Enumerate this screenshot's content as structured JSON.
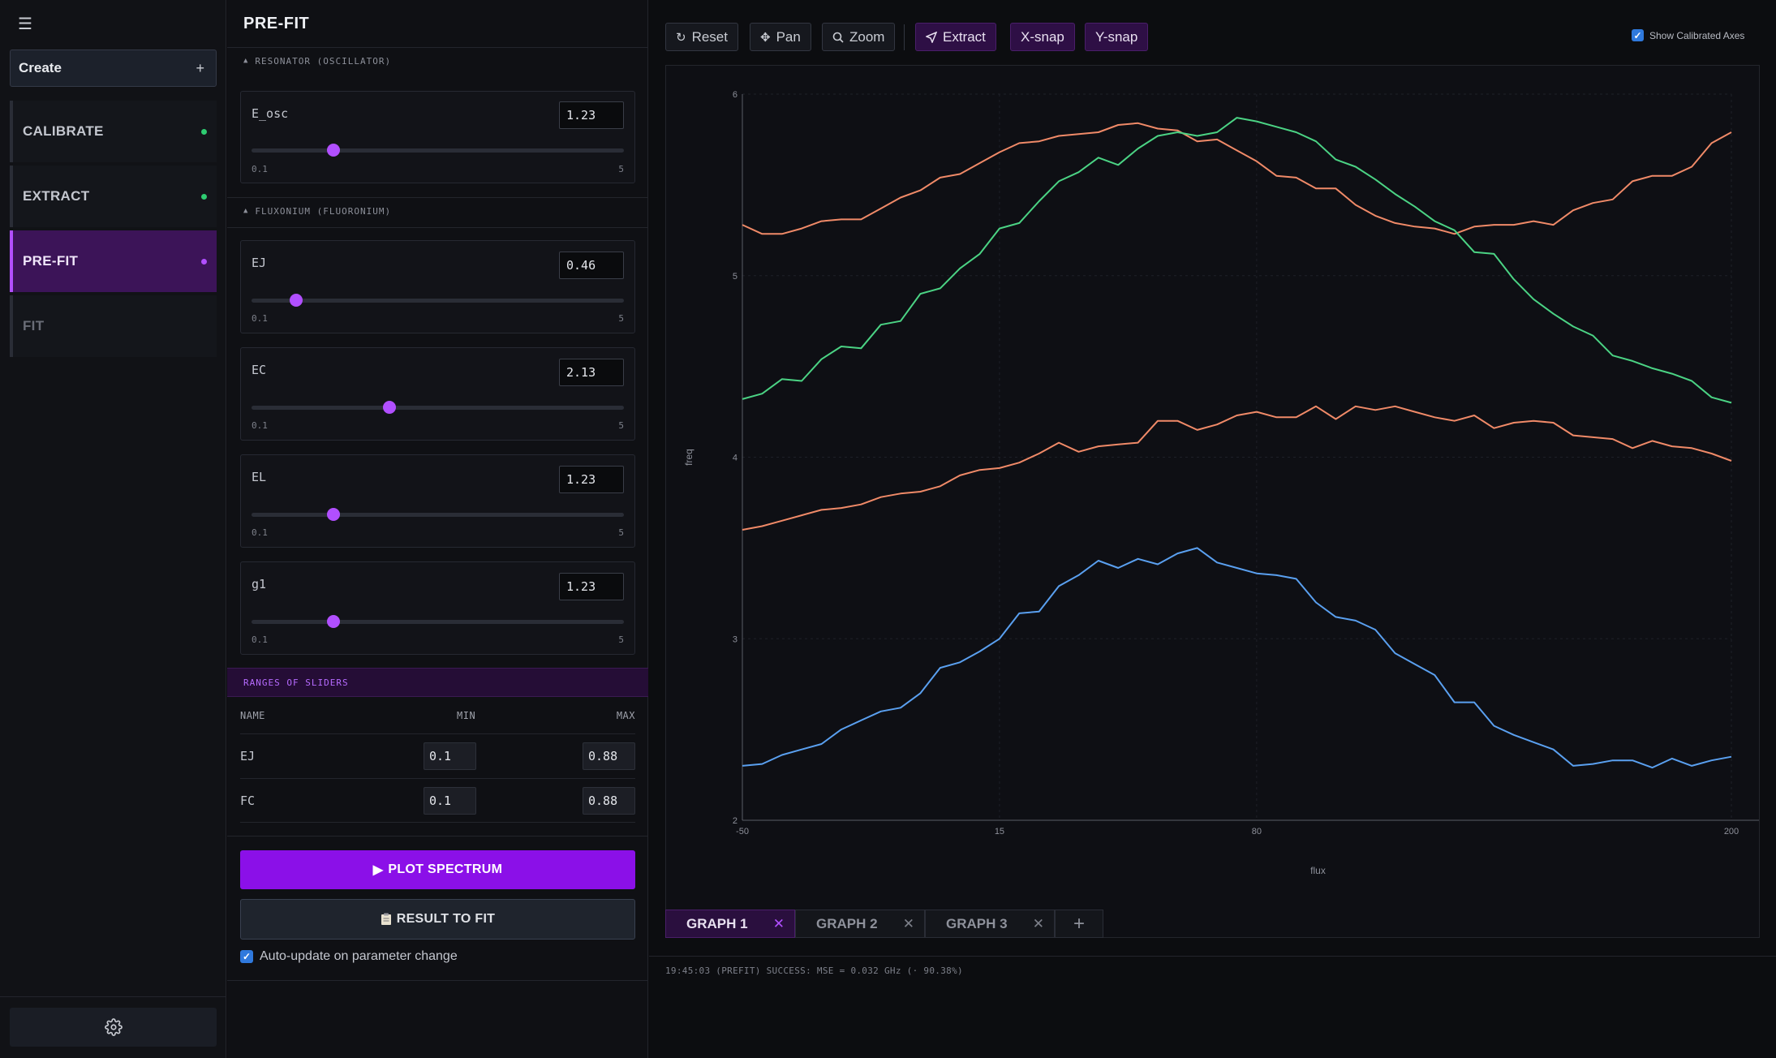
{
  "sidebar": {
    "create_label": "Create",
    "steps": [
      {
        "label": "CALIBRATE",
        "status_color": "#2ecc71"
      },
      {
        "label": "EXTRACT",
        "status_color": "#2ecc71"
      },
      {
        "label": "PRE-FIT",
        "status_color": "#b14fff"
      },
      {
        "label": "FIT",
        "status_color": ""
      }
    ]
  },
  "panel": {
    "title": "PRE-FIT",
    "resonator_section": "RESONATOR (OSCILLATOR)",
    "fluxonium_section": "FLUXONIUM (FLUORONIUM)",
    "params": [
      {
        "name": "E_osc",
        "value": "1.23",
        "min": "0.1",
        "max": "5",
        "slider_fraction": 0.22
      },
      {
        "name": "EJ",
        "value": "0.46",
        "min": "0.1",
        "max": "5",
        "slider_fraction": 0.12
      },
      {
        "name": "EC",
        "value": "2.13",
        "min": "0.1",
        "max": "5",
        "slider_fraction": 0.37
      },
      {
        "name": "EL",
        "value": "1.23",
        "min": "0.1",
        "max": "5",
        "slider_fraction": 0.22
      },
      {
        "name": "g1",
        "value": "1.23",
        "min": "0.1",
        "max": "5",
        "slider_fraction": 0.22
      }
    ],
    "ranges_section": "RANGES OF SLIDERS",
    "ranges_headers": {
      "name": "NAME",
      "min": "MIN",
      "max": "MAX"
    },
    "ranges_rows": [
      {
        "name": "EJ",
        "min": "0.1",
        "max": "0.88"
      },
      {
        "name": "FC",
        "min": "0.1",
        "max": "0.88"
      }
    ],
    "plot_button": "PLOT SPECTRUM",
    "result_button": "RESULT TO FIT",
    "auto_update": "Auto-update on parameter change"
  },
  "toolbar": {
    "reset": "Reset",
    "pan": "Pan",
    "zoom": "Zoom",
    "extract": "Extract",
    "xsnap": "X-snap",
    "ysnap": "Y-snap",
    "show_calibrated": "Show Calibrated Axes",
    "accent_color": "#b14fff"
  },
  "graph_tabs": [
    "GRAPH 1",
    "GRAPH 2",
    "GRAPH 3"
  ],
  "status": "19:45:03 (PREFIT) SUCCESS: MSE = 0.032 GHz (· 90.38%)",
  "chart_data": {
    "type": "line",
    "xlabel": "flux",
    "ylabel": "freq",
    "xlim": [
      -50,
      200
    ],
    "ylim": [
      2,
      6
    ],
    "x_ticks": [
      -50,
      15,
      80,
      200
    ],
    "y_ticks": [
      2,
      3,
      4,
      5,
      6
    ],
    "x_tick_labels": [
      "-50",
      "15",
      "80",
      "200"
    ],
    "y_tick_labels": [
      "2",
      "3",
      "4",
      "5",
      "6"
    ],
    "grid": true,
    "series": [
      {
        "color": "#f08a68",
        "x": [
          -50,
          -45,
          -40,
          -35,
          -30,
          -25,
          -20,
          -15,
          -10,
          -5,
          0,
          5,
          10,
          15,
          20,
          25,
          30,
          35,
          40,
          45,
          50,
          55,
          60,
          65,
          70,
          75,
          80,
          85,
          90,
          95,
          100,
          105,
          110,
          115,
          120,
          125,
          130,
          135,
          140,
          145,
          150,
          155,
          160,
          165,
          170,
          175,
          180,
          185,
          190,
          195,
          200
        ],
        "y": [
          5.28,
          5.23,
          5.23,
          5.26,
          5.3,
          5.31,
          5.31,
          5.37,
          5.43,
          5.47,
          5.54,
          5.56,
          5.62,
          5.68,
          5.73,
          5.74,
          5.77,
          5.78,
          5.79,
          5.83,
          5.84,
          5.81,
          5.8,
          5.74,
          5.75,
          5.69,
          5.63,
          5.55,
          5.54,
          5.48,
          5.48,
          5.39,
          5.33,
          5.29,
          5.27,
          5.26,
          5.23,
          5.27,
          5.28,
          5.28,
          5.3,
          5.28,
          5.36,
          5.4,
          5.42,
          5.52,
          5.55,
          5.55,
          5.6,
          5.73,
          5.79
        ]
      },
      {
        "color": "#4bd384",
        "x": [
          -50,
          -45,
          -40,
          -35,
          -30,
          -25,
          -20,
          -15,
          -10,
          -5,
          0,
          5,
          10,
          15,
          20,
          25,
          30,
          35,
          40,
          45,
          50,
          55,
          60,
          65,
          70,
          75,
          80,
          85,
          90,
          95,
          100,
          105,
          110,
          115,
          120,
          125,
          130,
          135,
          140,
          145,
          150,
          155,
          160,
          165,
          170,
          175,
          180,
          185,
          190,
          195,
          200
        ],
        "y": [
          4.32,
          4.35,
          4.43,
          4.42,
          4.54,
          4.61,
          4.6,
          4.73,
          4.75,
          4.9,
          4.93,
          5.04,
          5.12,
          5.26,
          5.29,
          5.41,
          5.52,
          5.57,
          5.65,
          5.61,
          5.7,
          5.77,
          5.79,
          5.77,
          5.79,
          5.87,
          5.85,
          5.82,
          5.79,
          5.74,
          5.64,
          5.6,
          5.53,
          5.45,
          5.38,
          5.3,
          5.25,
          5.13,
          5.12,
          4.98,
          4.87,
          4.79,
          4.72,
          4.67,
          4.56,
          4.53,
          4.49,
          4.46,
          4.42,
          4.33,
          4.3
        ]
      },
      {
        "color": "#f08a68",
        "x": [
          -50,
          -45,
          -40,
          -35,
          -30,
          -25,
          -20,
          -15,
          -10,
          -5,
          0,
          5,
          10,
          15,
          20,
          25,
          30,
          35,
          40,
          45,
          50,
          55,
          60,
          65,
          70,
          75,
          80,
          85,
          90,
          95,
          100,
          105,
          110,
          115,
          120,
          125,
          130,
          135,
          140,
          145,
          150,
          155,
          160,
          165,
          170,
          175,
          180,
          185,
          190,
          195,
          200
        ],
        "y": [
          3.6,
          3.62,
          3.65,
          3.68,
          3.71,
          3.72,
          3.74,
          3.78,
          3.8,
          3.81,
          3.84,
          3.9,
          3.93,
          3.94,
          3.97,
          4.02,
          4.08,
          4.03,
          4.06,
          4.07,
          4.08,
          4.2,
          4.2,
          4.15,
          4.18,
          4.23,
          4.25,
          4.22,
          4.22,
          4.28,
          4.21,
          4.28,
          4.26,
          4.28,
          4.25,
          4.22,
          4.2,
          4.23,
          4.16,
          4.19,
          4.2,
          4.19,
          4.12,
          4.11,
          4.1,
          4.05,
          4.09,
          4.06,
          4.05,
          4.02,
          3.98
        ]
      },
      {
        "color": "#5aa0f0",
        "x": [
          -50,
          -45,
          -40,
          -35,
          -30,
          -25,
          -20,
          -15,
          -10,
          -5,
          0,
          5,
          10,
          15,
          20,
          25,
          30,
          35,
          40,
          45,
          50,
          55,
          60,
          65,
          70,
          75,
          80,
          85,
          90,
          95,
          100,
          105,
          110,
          115,
          120,
          125,
          130,
          135,
          140,
          145,
          150,
          155,
          160,
          165,
          170,
          175,
          180,
          185,
          190,
          195,
          200
        ],
        "y": [
          2.3,
          2.31,
          2.36,
          2.39,
          2.42,
          2.5,
          2.55,
          2.6,
          2.62,
          2.7,
          2.84,
          2.87,
          2.93,
          3.0,
          3.14,
          3.15,
          3.29,
          3.35,
          3.43,
          3.39,
          3.44,
          3.41,
          3.47,
          3.5,
          3.42,
          3.39,
          3.36,
          3.35,
          3.33,
          3.2,
          3.12,
          3.1,
          3.05,
          2.92,
          2.86,
          2.8,
          2.65,
          2.65,
          2.52,
          2.47,
          2.43,
          2.39,
          2.3,
          2.31,
          2.33,
          2.33,
          2.29,
          2.34,
          2.3,
          2.33,
          2.35
        ]
      }
    ]
  }
}
